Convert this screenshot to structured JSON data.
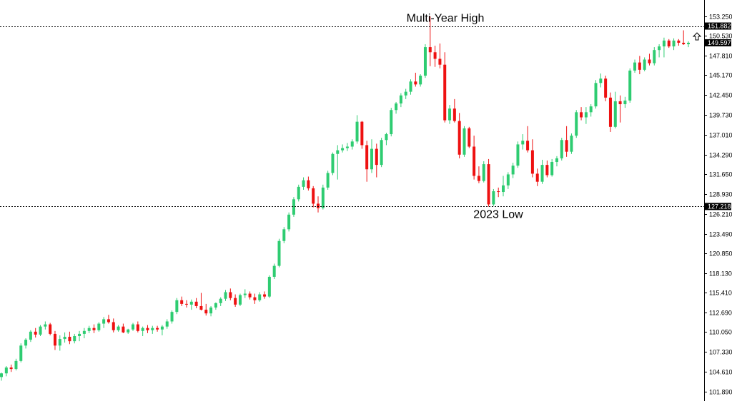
{
  "chart_data": {
    "type": "candlestick",
    "title": "",
    "xlabel": "",
    "ylabel": "",
    "ylim": [
      100.8,
      154.2
    ],
    "grid": false,
    "colors": {
      "up": "#2ecc71",
      "down": "#ee1111",
      "line": "#000000",
      "tag_bg": "#000000",
      "tag_text": "#ffffff"
    },
    "y_ticks": [
      "153.250",
      "150.530",
      "147.810",
      "145.170",
      "142.450",
      "139.730",
      "137.010",
      "134.290",
      "131.650",
      "128.930",
      "126.210",
      "123.490",
      "120.850",
      "118.130",
      "115.410",
      "112.690",
      "110.050",
      "107.330",
      "104.610",
      "101.890"
    ],
    "levels": [
      {
        "value": 151.882,
        "tag": "151.882",
        "label": "Multi-Year High",
        "label_position": "above"
      },
      {
        "value": 127.218,
        "tag": "127.218",
        "label": "2023 Low",
        "label_position": "below"
      }
    ],
    "current_price": {
      "value": 149.597,
      "tag": "149.597"
    },
    "candles": [
      [
        103.9,
        104.5,
        103.4,
        104.4
      ],
      [
        104.4,
        105.4,
        104.0,
        105.2
      ],
      [
        105.2,
        105.6,
        104.6,
        105.0
      ],
      [
        105.0,
        106.4,
        104.8,
        106.1
      ],
      [
        106.1,
        108.5,
        105.9,
        108.2
      ],
      [
        108.2,
        109.2,
        107.8,
        109.0
      ],
      [
        109.0,
        110.3,
        108.7,
        110.1
      ],
      [
        110.1,
        110.6,
        109.3,
        109.7
      ],
      [
        109.7,
        111.0,
        109.5,
        110.8
      ],
      [
        110.8,
        111.5,
        110.4,
        111.1
      ],
      [
        111.1,
        111.3,
        109.6,
        109.8
      ],
      [
        109.8,
        110.2,
        107.6,
        108.2
      ],
      [
        108.2,
        109.6,
        107.5,
        109.1
      ],
      [
        109.1,
        110.0,
        108.6,
        109.4
      ],
      [
        109.4,
        110.1,
        108.4,
        108.8
      ],
      [
        108.8,
        109.8,
        108.5,
        109.5
      ],
      [
        109.5,
        110.2,
        108.8,
        109.8
      ],
      [
        109.8,
        110.6,
        109.2,
        110.2
      ],
      [
        110.2,
        110.9,
        109.9,
        110.6
      ],
      [
        110.6,
        111.1,
        109.9,
        110.3
      ],
      [
        110.3,
        111.4,
        110.1,
        111.2
      ],
      [
        111.2,
        112.1,
        110.6,
        111.8
      ],
      [
        111.8,
        112.4,
        111.2,
        111.4
      ],
      [
        111.4,
        111.9,
        110.0,
        110.3
      ],
      [
        110.3,
        111.0,
        110.1,
        110.8
      ],
      [
        110.8,
        111.2,
        109.9,
        110.0
      ],
      [
        110.0,
        110.5,
        109.8,
        110.4
      ],
      [
        110.4,
        111.3,
        110.2,
        111.1
      ],
      [
        111.1,
        111.5,
        110.0,
        110.2
      ],
      [
        110.2,
        110.8,
        109.5,
        110.6
      ],
      [
        110.6,
        111.0,
        109.9,
        110.3
      ],
      [
        110.3,
        110.9,
        109.8,
        110.6
      ],
      [
        110.6,
        110.9,
        110.1,
        110.4
      ],
      [
        110.4,
        111.0,
        109.6,
        110.8
      ],
      [
        110.8,
        111.8,
        110.5,
        111.5
      ],
      [
        111.5,
        113.0,
        111.2,
        112.8
      ],
      [
        112.8,
        114.7,
        112.5,
        114.4
      ],
      [
        114.4,
        114.9,
        113.6,
        113.9
      ],
      [
        113.9,
        114.4,
        113.4,
        113.8
      ],
      [
        113.8,
        114.5,
        113.1,
        114.2
      ],
      [
        114.2,
        114.7,
        113.3,
        113.6
      ],
      [
        113.6,
        115.4,
        113.0,
        113.1
      ],
      [
        113.1,
        113.9,
        112.3,
        112.6
      ],
      [
        112.6,
        113.6,
        112.2,
        113.4
      ],
      [
        113.4,
        114.1,
        113.1,
        114.0
      ],
      [
        114.0,
        114.8,
        113.6,
        114.6
      ],
      [
        114.6,
        115.8,
        114.3,
        115.5
      ],
      [
        115.5,
        116.0,
        114.4,
        114.7
      ],
      [
        114.7,
        115.2,
        113.5,
        113.8
      ],
      [
        113.8,
        115.3,
        113.6,
        115.1
      ],
      [
        115.1,
        115.9,
        114.7,
        115.3
      ],
      [
        115.3,
        115.6,
        114.5,
        114.8
      ],
      [
        114.8,
        115.3,
        113.9,
        114.4
      ],
      [
        114.4,
        115.5,
        114.2,
        115.2
      ],
      [
        115.2,
        115.6,
        114.6,
        114.9
      ],
      [
        114.9,
        117.8,
        114.7,
        117.6
      ],
      [
        117.6,
        119.4,
        117.3,
        119.1
      ],
      [
        119.1,
        122.8,
        118.9,
        122.5
      ],
      [
        122.5,
        124.4,
        122.2,
        124.1
      ],
      [
        124.1,
        126.4,
        123.8,
        126.1
      ],
      [
        126.1,
        128.5,
        125.8,
        128.2
      ],
      [
        128.2,
        130.2,
        127.9,
        129.9
      ],
      [
        129.9,
        131.2,
        129.5,
        130.8
      ],
      [
        130.8,
        131.3,
        129.4,
        129.7
      ],
      [
        129.7,
        130.0,
        127.1,
        127.6
      ],
      [
        127.6,
        128.6,
        126.4,
        127.0
      ],
      [
        127.0,
        130.2,
        126.8,
        129.8
      ],
      [
        129.8,
        132.1,
        129.5,
        131.8
      ],
      [
        131.8,
        134.6,
        131.5,
        134.4
      ],
      [
        134.4,
        135.6,
        130.9,
        134.9
      ],
      [
        134.9,
        135.7,
        134.6,
        135.2
      ],
      [
        135.2,
        135.9,
        134.8,
        135.4
      ],
      [
        135.4,
        136.4,
        135.0,
        136.1
      ],
      [
        136.1,
        139.7,
        135.8,
        138.8
      ],
      [
        138.8,
        138.9,
        135.1,
        135.6
      ],
      [
        135.6,
        136.2,
        130.6,
        132.3
      ],
      [
        132.3,
        136.4,
        131.8,
        135.1
      ],
      [
        135.1,
        135.8,
        131.2,
        132.9
      ],
      [
        132.9,
        136.6,
        132.6,
        136.3
      ],
      [
        136.3,
        137.3,
        135.6,
        137.1
      ],
      [
        137.1,
        140.7,
        136.8,
        140.4
      ],
      [
        140.4,
        141.5,
        139.9,
        141.3
      ],
      [
        141.3,
        142.7,
        140.8,
        142.4
      ],
      [
        142.4,
        143.3,
        141.9,
        142.9
      ],
      [
        142.9,
        144.6,
        142.5,
        144.3
      ],
      [
        144.3,
        145.5,
        143.6,
        143.9
      ],
      [
        143.9,
        145.3,
        143.6,
        145.1
      ],
      [
        145.1,
        149.4,
        144.8,
        149.0
      ],
      [
        149.0,
        153.2,
        146.4,
        148.3
      ],
      [
        148.3,
        149.2,
        146.3,
        147.4
      ],
      [
        147.4,
        149.5,
        146.1,
        146.6
      ],
      [
        146.6,
        148.3,
        138.7,
        139.0
      ],
      [
        139.0,
        141.1,
        138.5,
        140.6
      ],
      [
        140.6,
        141.9,
        138.7,
        138.9
      ],
      [
        138.9,
        140.0,
        133.8,
        134.3
      ],
      [
        134.3,
        138.2,
        134.0,
        137.9
      ],
      [
        137.9,
        138.1,
        135.2,
        135.4
      ],
      [
        135.4,
        136.9,
        130.9,
        131.4
      ],
      [
        131.4,
        132.7,
        130.4,
        130.7
      ],
      [
        130.7,
        133.4,
        130.5,
        133.0
      ],
      [
        133.0,
        133.7,
        127.2,
        127.5
      ],
      [
        127.5,
        129.6,
        127.3,
        129.3
      ],
      [
        129.3,
        129.8,
        128.5,
        129.2
      ],
      [
        129.2,
        131.4,
        128.6,
        130.1
      ],
      [
        130.1,
        131.9,
        129.6,
        131.6
      ],
      [
        131.6,
        133.2,
        131.1,
        132.8
      ],
      [
        132.8,
        136.1,
        132.5,
        135.7
      ],
      [
        135.7,
        137.1,
        135.0,
        136.2
      ],
      [
        136.2,
        138.2,
        134.6,
        134.9
      ],
      [
        134.9,
        136.4,
        131.2,
        131.7
      ],
      [
        131.7,
        132.4,
        130.0,
        130.6
      ],
      [
        130.6,
        133.6,
        130.3,
        132.9
      ],
      [
        132.9,
        133.5,
        131.2,
        131.5
      ],
      [
        131.5,
        133.7,
        131.3,
        133.3
      ],
      [
        133.3,
        134.1,
        132.7,
        133.8
      ],
      [
        133.8,
        136.6,
        133.5,
        136.3
      ],
      [
        136.3,
        138.2,
        134.0,
        134.7
      ],
      [
        134.7,
        137.2,
        134.4,
        136.9
      ],
      [
        136.9,
        140.4,
        136.6,
        140.1
      ],
      [
        140.1,
        140.8,
        139.0,
        139.4
      ],
      [
        139.4,
        140.8,
        138.5,
        140.1
      ],
      [
        140.1,
        141.2,
        139.5,
        140.9
      ],
      [
        140.9,
        144.5,
        140.6,
        144.1
      ],
      [
        144.1,
        145.4,
        143.5,
        144.7
      ],
      [
        144.7,
        145.1,
        141.6,
        142.1
      ],
      [
        142.1,
        142.8,
        137.4,
        138.1
      ],
      [
        138.1,
        142.9,
        137.9,
        141.6
      ],
      [
        141.6,
        142.4,
        138.7,
        141.2
      ],
      [
        141.2,
        142.2,
        140.7,
        141.7
      ],
      [
        141.7,
        146.1,
        141.4,
        145.8
      ],
      [
        145.8,
        147.3,
        145.5,
        146.9
      ],
      [
        146.9,
        147.8,
        145.3,
        145.9
      ],
      [
        145.9,
        147.6,
        145.7,
        147.3
      ],
      [
        147.3,
        148.1,
        146.5,
        146.8
      ],
      [
        146.8,
        149.0,
        146.5,
        148.6
      ],
      [
        148.6,
        149.4,
        147.6,
        149.1
      ],
      [
        149.1,
        150.3,
        147.6,
        149.9
      ],
      [
        149.9,
        150.1,
        148.9,
        149.1
      ],
      [
        149.1,
        150.2,
        148.6,
        149.9
      ],
      [
        149.9,
        150.1,
        149.2,
        149.6
      ],
      [
        149.6,
        151.3,
        149.3,
        149.4
      ],
      [
        149.4,
        149.8,
        149.0,
        149.6
      ]
    ]
  }
}
